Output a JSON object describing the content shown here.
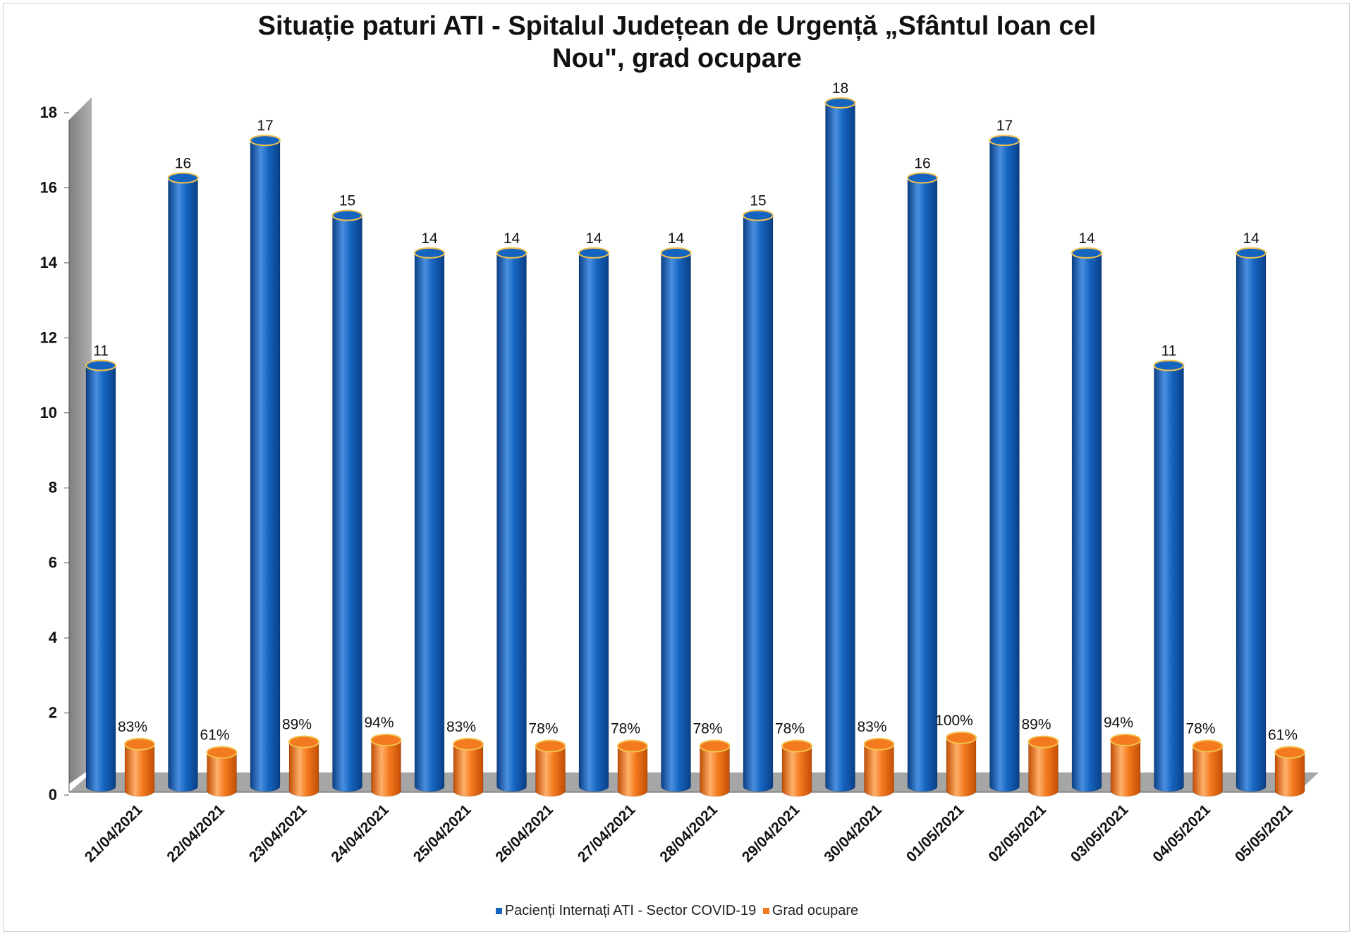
{
  "colors": {
    "series1": "#1565c0",
    "series1_light": "#4a8fe0",
    "series1_dark": "#0a3f86",
    "series2": "#f47a1f",
    "series2_light": "#ffb06a",
    "series2_dark": "#c24e05",
    "rim": "#f2c14e",
    "floor": "#a6a6a6",
    "wall": "#9a9a9a"
  },
  "chart_data": {
    "type": "bar",
    "title_lines": [
      "Situație paturi ATI - Spitalul Județean de Urgență „Sfântul Ioan cel",
      "Nou\", grad ocupare"
    ],
    "categories": [
      "21/04/2021",
      "22/04/2021",
      "23/04/2021",
      "24/04/2021",
      "25/04/2021",
      "26/04/2021",
      "27/04/2021",
      "28/04/2021",
      "29/04/2021",
      "30/04/2021",
      "01/05/2021",
      "02/05/2021",
      "03/05/2021",
      "04/05/2021",
      "05/05/2021"
    ],
    "ylim": [
      0,
      18
    ],
    "yticks": [
      "0",
      "2",
      "4",
      "6",
      "8",
      "10",
      "12",
      "14",
      "16",
      "18"
    ],
    "grid": false,
    "legend_position": "bottom",
    "series": [
      {
        "name": "Pacienți Internați ATI - Sector COVID-19",
        "values": [
          11,
          16,
          17,
          15,
          14,
          14,
          14,
          14,
          15,
          18,
          16,
          17,
          14,
          11,
          14
        ],
        "labels": [
          "11",
          "16",
          "17",
          "15",
          "14",
          "14",
          "14",
          "14",
          "15",
          "18",
          "16",
          "17",
          "14",
          "11",
          "14"
        ]
      },
      {
        "name": "Grad ocupare",
        "values": [
          0.83,
          0.61,
          0.89,
          0.94,
          0.83,
          0.78,
          0.78,
          0.78,
          0.78,
          0.83,
          1.0,
          0.89,
          0.94,
          0.78,
          0.61
        ],
        "labels": [
          "83%",
          "61%",
          "89%",
          "94%",
          "83%",
          "78%",
          "78%",
          "78%",
          "78%",
          "83%",
          "100%",
          "89%",
          "94%",
          "78%",
          "61%"
        ]
      }
    ]
  }
}
